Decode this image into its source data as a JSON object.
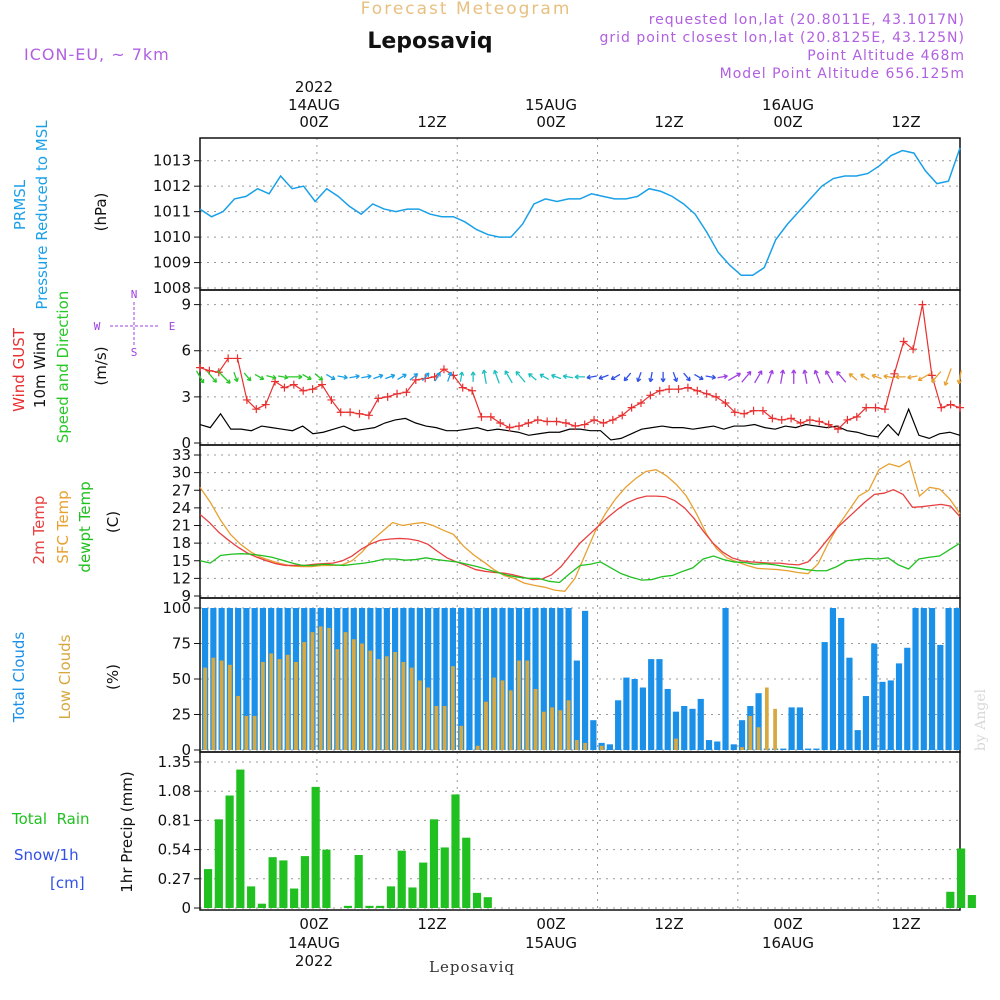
{
  "header": {
    "product": "Forecast Meteogram",
    "location": "Leposaviq",
    "model": "ICON-EU, ~ 7km",
    "requested": "requested lon,lat (20.8011E, 43.1017N)",
    "grid_point": "grid point closest lon,lat (20.8125E, 43.125N)",
    "point_altitude": "Point Altitude 468m",
    "model_altitude": "Model Point Altitude 656.125m",
    "footer_location": "Leposaviq",
    "watermark": "by Angel"
  },
  "time_axis": {
    "year": "2022",
    "top_labels": [
      "00Z",
      "12Z",
      "00Z",
      "12Z",
      "00Z",
      "12Z"
    ],
    "top_dates": [
      "14AUG",
      "15AUG",
      "16AUG"
    ],
    "bottom_labels": [
      "00Z",
      "12Z",
      "00Z",
      "12Z",
      "00Z",
      "12Z"
    ],
    "bottom_dates": [
      "14AUG",
      "15AUG",
      "16AUG"
    ]
  },
  "colors": {
    "pressure": "#1aa0e8",
    "gust": "#e83030",
    "wind10m": "#000000",
    "arrows_label": "#28c828",
    "direction": "#a040e0",
    "t2m": "#e84040",
    "sfc": "#e8a030",
    "dewpt": "#20c020",
    "total_clouds": "#1a90e8",
    "low_clouds": "#d8a840",
    "rain": "#20c020",
    "snow": "#3050e8",
    "header_purple": "#b060e0",
    "header_orange": "#e8c080"
  },
  "panels": {
    "pressure": {
      "label1": "PRMSL",
      "label2": "Pressure Reduced to MSL",
      "unit": "(hPa)",
      "ticks": [
        "1008",
        "1009",
        "1010",
        "1011",
        "1012",
        "1013"
      ]
    },
    "wind": {
      "label1": "Wind GUST",
      "label2": "10m Wind",
      "label3": "Speed and Direction",
      "unit": "(m/s)",
      "ticks": [
        "0",
        "3",
        "6",
        "9"
      ],
      "dir_n": "N",
      "dir_s": "S",
      "dir_w": "W",
      "dir_e": "E"
    },
    "temp": {
      "label1": "2m Temp",
      "label2": "SFC Temp",
      "label3": "dewpt Temp",
      "unit": "(C)",
      "ticks": [
        "9",
        "12",
        "15",
        "18",
        "21",
        "24",
        "27",
        "30",
        "33"
      ]
    },
    "clouds": {
      "label1": "Total Clouds",
      "label2": "Low Clouds",
      "unit": "(%)",
      "ticks": [
        "0",
        "25",
        "50",
        "75",
        "100"
      ]
    },
    "precip": {
      "label1": "Total  Rain",
      "label2": "Snow/1h",
      "label3": "[cm]",
      "unit": "1hr Precip (mm)",
      "ticks": [
        "0",
        "0.27",
        "0.54",
        "0.81",
        "1.08",
        "1.35"
      ]
    }
  },
  "chart_data": {
    "type": "line",
    "x_unit": "hours after 2022-08-13 14Z",
    "x_range": [
      0,
      65
    ],
    "pressure": {
      "type": "line",
      "name": "PRMSL",
      "ylim": [
        1008,
        1013.5
      ],
      "values": [
        1011.1,
        1010.8,
        1011.0,
        1011.5,
        1011.6,
        1011.9,
        1011.7,
        1012.4,
        1011.9,
        1012.0,
        1011.4,
        1011.9,
        1011.6,
        1011.2,
        1010.9,
        1011.3,
        1011.1,
        1011.0,
        1011.1,
        1011.1,
        1010.9,
        1010.8,
        1010.8,
        1010.6,
        1010.3,
        1010.1,
        1010.0,
        1010.0,
        1010.5,
        1011.3,
        1011.5,
        1011.4,
        1011.5,
        1011.5,
        1011.7,
        1011.6,
        1011.5,
        1011.5,
        1011.6,
        1011.9,
        1011.8,
        1011.6,
        1011.3,
        1010.9,
        1010.2,
        1009.4,
        1008.9,
        1008.5,
        1008.5,
        1008.8,
        1009.9,
        1010.5,
        1011.0,
        1011.5,
        1012.0,
        1012.3,
        1012.4,
        1012.4,
        1012.5,
        1012.8,
        1013.2,
        1013.4,
        1013.3,
        1012.6,
        1012.1,
        1012.2,
        1013.5
      ]
    },
    "wind": {
      "ylim": [
        0,
        9.3
      ],
      "gust": [
        4.9,
        4.7,
        4.6,
        5.5,
        5.5,
        2.8,
        2.2,
        2.5,
        4.0,
        3.6,
        3.8,
        3.4,
        3.5,
        3.8,
        2.8,
        2.0,
        2.0,
        1.9,
        1.8,
        2.9,
        3.0,
        3.2,
        3.3,
        4.1,
        4.2,
        4.3,
        4.8,
        4.4,
        3.6,
        3.4,
        1.7,
        1.7,
        1.3,
        1.0,
        1.1,
        1.3,
        1.5,
        1.4,
        1.4,
        1.3,
        1.1,
        1.2,
        1.5,
        1.3,
        1.5,
        1.8,
        2.3,
        2.6,
        3.1,
        3.4,
        3.5,
        3.5,
        3.6,
        3.4,
        3.2,
        3.0,
        2.6,
        2.0,
        1.9,
        2.1,
        2.1,
        1.6,
        1.5,
        1.6,
        1.3,
        1.5,
        1.4,
        1.2,
        0.9,
        1.5,
        1.7,
        2.3,
        2.3,
        2.2,
        4.5,
        6.6,
        6.1,
        9.0,
        4.4,
        2.3,
        2.5,
        2.3
      ],
      "wind10m": [
        1.2,
        1.0,
        1.9,
        0.9,
        0.9,
        0.8,
        1.1,
        1.0,
        0.9,
        0.8,
        1.1,
        0.6,
        0.7,
        0.9,
        1.1,
        0.8,
        0.9,
        1.0,
        1.3,
        1.5,
        1.6,
        1.3,
        1.1,
        1.0,
        0.8,
        0.8,
        0.9,
        1.0,
        0.8,
        0.9,
        0.8,
        0.7,
        0.5,
        0.6,
        0.7,
        0.7,
        0.9,
        0.9,
        0.8,
        0.8,
        0.2,
        0.3,
        0.6,
        0.9,
        1.0,
        1.1,
        1.0,
        1.0,
        0.9,
        1.0,
        1.1,
        0.9,
        1.1,
        1.1,
        1.2,
        1.0,
        0.9,
        1.1,
        1.0,
        1.2,
        1.1,
        1.0,
        1.1,
        0.8,
        0.7,
        0.5,
        0.4,
        1.2,
        0.5,
        2.2,
        0.5,
        0.3,
        0.6,
        0.7,
        0.5
      ],
      "arrow_dirs_deg": [
        30,
        40,
        45,
        20,
        40,
        60,
        75,
        80,
        90,
        60,
        50,
        60,
        80,
        100,
        100,
        110,
        110,
        120,
        130,
        140,
        150,
        160,
        170,
        180,
        190,
        200,
        210,
        220,
        230,
        240,
        250,
        260,
        270,
        280,
        290,
        300,
        320,
        340,
        350,
        360,
        20,
        40,
        60,
        80,
        100,
        120,
        140,
        150,
        160,
        170,
        180,
        190,
        200,
        210,
        220,
        230,
        240,
        250,
        260,
        270,
        280,
        300,
        320,
        340,
        350
      ],
      "arrow_speed": [
        2,
        2,
        3,
        1,
        1,
        1,
        1,
        1,
        2,
        1,
        1,
        1,
        1,
        1,
        1,
        1,
        1,
        1,
        1,
        1,
        1,
        1,
        1,
        1,
        2,
        2,
        2,
        2,
        1,
        1,
        1,
        1,
        1,
        1,
        1,
        1,
        1,
        1,
        1,
        1,
        1,
        1,
        1,
        1,
        1,
        2,
        2,
        2,
        2,
        2,
        2,
        2,
        2,
        2,
        2,
        1,
        1,
        1,
        1,
        1,
        1,
        2,
        2,
        3,
        2
      ]
    },
    "temperature": {
      "ylim": [
        9,
        33
      ],
      "t2m": [
        22.9,
        21.5,
        19.8,
        18.5,
        17.3,
        16.3,
        15.6,
        15.0,
        14.5,
        14.2,
        14.2,
        14.2,
        14.4,
        14.5,
        14.6,
        15.0,
        15.8,
        17.0,
        17.9,
        18.5,
        18.7,
        18.8,
        18.7,
        18.4,
        17.8,
        16.6,
        15.5,
        14.8,
        14.2,
        13.5,
        13.2,
        13.0,
        12.9,
        12.6,
        12.2,
        11.8,
        11.9,
        12.6,
        14.0,
        16.0,
        18.0,
        19.5,
        21.0,
        22.5,
        23.8,
        24.9,
        25.6,
        26.0,
        26.0,
        25.9,
        25.2,
        24.0,
        22.2,
        20.0,
        18.0,
        16.5,
        15.5,
        15.0,
        14.8,
        14.7,
        14.6,
        14.6,
        14.4,
        14.3,
        14.8,
        16.5,
        18.5,
        20.5,
        22.0,
        23.5,
        25.0,
        26.3,
        26.5,
        27.1,
        26.3,
        24.1,
        24.2,
        24.4,
        24.6,
        24.3,
        22.5
      ],
      "sfc": [
        27.5,
        25.0,
        22.0,
        19.5,
        17.8,
        16.5,
        15.6,
        15.0,
        14.5,
        14.1,
        14.0,
        14.0,
        14.2,
        14.2,
        14.3,
        15.0,
        16.5,
        18.5,
        20.0,
        21.5,
        21.0,
        21.3,
        21.5,
        21.0,
        20.2,
        19.5,
        17.5,
        16.0,
        14.8,
        13.5,
        12.5,
        12.0,
        11.2,
        10.8,
        10.5,
        10.0,
        9.8,
        12.0,
        16.0,
        20.0,
        23.0,
        25.5,
        27.5,
        29.0,
        30.2,
        30.5,
        29.5,
        28.0,
        26.0,
        23.0,
        19.5,
        17.0,
        15.5,
        14.8,
        14.2,
        13.7,
        13.6,
        13.5,
        13.3,
        13.0,
        12.8,
        14.5,
        18.0,
        21.0,
        23.5,
        26.0,
        27.0,
        30.5,
        31.5,
        31.0,
        32.0,
        26.0,
        27.5,
        27.2,
        25.5,
        23.0
      ],
      "dewpt": [
        15.0,
        14.6,
        15.9,
        16.1,
        16.2,
        16.1,
        15.9,
        15.6,
        15.1,
        14.6,
        14.2,
        14.2,
        14.4,
        14.3,
        14.2,
        14.4,
        14.6,
        14.9,
        15.3,
        15.3,
        15.1,
        15.2,
        15.5,
        15.2,
        15.0,
        14.8,
        14.4,
        14.0,
        13.5,
        13.0,
        12.5,
        12.2,
        12.0,
        12.0,
        11.5,
        11.3,
        12.8,
        14.2,
        14.4,
        14.8,
        13.8,
        12.8,
        12.2,
        11.7,
        11.8,
        12.3,
        12.5,
        13.2,
        13.8,
        15.3,
        15.8,
        15.2,
        14.8,
        14.7,
        14.4,
        14.5,
        14.3,
        14.0,
        13.8,
        13.5,
        13.3,
        13.3,
        14.0,
        15.0,
        15.2,
        15.4,
        15.3,
        15.5,
        14.3,
        13.6,
        15.3,
        15.6,
        15.8,
        16.9,
        18.0
      ]
    },
    "clouds": {
      "ylim": [
        0,
        100
      ],
      "total": [
        100,
        100,
        100,
        100,
        100,
        100,
        100,
        100,
        100,
        100,
        100,
        100,
        100,
        100,
        100,
        100,
        100,
        100,
        100,
        100,
        100,
        100,
        100,
        100,
        100,
        100,
        100,
        100,
        100,
        100,
        100,
        100,
        100,
        100,
        100,
        100,
        100,
        100,
        100,
        100,
        100,
        100,
        100,
        100,
        100,
        63,
        98,
        21,
        5,
        4,
        35,
        51,
        50,
        44,
        64,
        64,
        43,
        27,
        31,
        29,
        36,
        7,
        6,
        100,
        4,
        21,
        31,
        40,
        1,
        1,
        1,
        30,
        30,
        1,
        1,
        76,
        100,
        93,
        65,
        14,
        38,
        75,
        48,
        49,
        61,
        72,
        100,
        100,
        100,
        74,
        100,
        100
      ],
      "low": [
        58,
        65,
        63,
        60,
        38,
        24,
        24,
        62,
        68,
        64,
        67,
        62,
        76,
        83,
        87,
        86,
        71,
        83,
        78,
        75,
        70,
        64,
        66,
        69,
        62,
        58,
        49,
        44,
        31,
        31,
        59,
        17,
        0,
        3,
        34,
        51,
        49,
        42,
        63,
        63,
        43,
        27,
        30,
        28,
        35,
        7,
        5,
        0,
        3,
        0,
        0,
        0,
        0,
        0,
        0,
        0,
        0,
        8,
        0,
        0,
        0,
        0,
        0,
        0,
        0,
        2,
        24,
        16,
        44,
        29,
        0,
        0
      ]
    },
    "precip": {
      "ylim": [
        0,
        1.35
      ],
      "rain": [
        0.36,
        0.82,
        1.04,
        1.28,
        0.2,
        0.04,
        0.47,
        0.44,
        0.18,
        0.48,
        1.12,
        0.54,
        0.0,
        0.02,
        0.49,
        0.02,
        0.02,
        0.2,
        0.53,
        0.19,
        0.42,
        0.82,
        0.56,
        1.05,
        0.65,
        0.14,
        0.1,
        0,
        0,
        0,
        0,
        0,
        0,
        0,
        0,
        0,
        0,
        0,
        0,
        0,
        0,
        0,
        0,
        0,
        0,
        0,
        0,
        0,
        0,
        0,
        0,
        0,
        0,
        0,
        0,
        0,
        0,
        0,
        0,
        0,
        0,
        0,
        0,
        0,
        0,
        0,
        0,
        0,
        0,
        0.15,
        0.55,
        0.12
      ],
      "snow": []
    }
  }
}
